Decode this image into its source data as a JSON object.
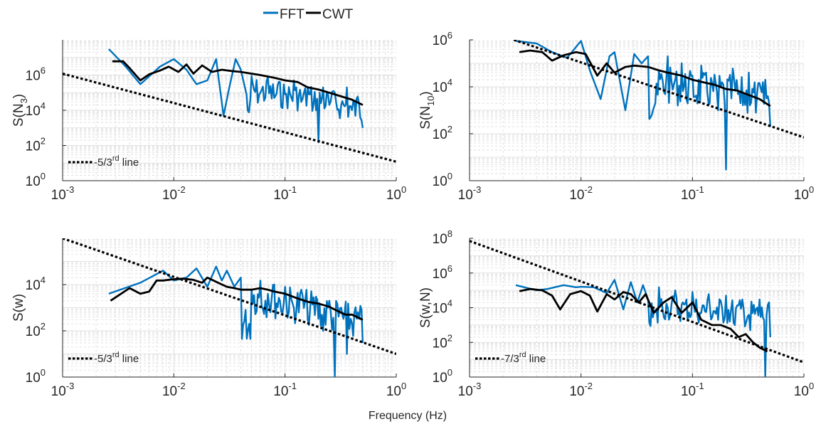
{
  "figure": {
    "legend": {
      "placement": "top-center",
      "entries": [
        {
          "label": "FFT",
          "color": "#0072BD"
        },
        {
          "label": "CWT",
          "color": "#000000"
        }
      ]
    },
    "xlabel": "Frequency (Hz)"
  },
  "chart_data": [
    {
      "type": "line",
      "ylabel_main": "S(N",
      "ylabel_sub": "3",
      "ylabel_end": ")",
      "xscale": "log",
      "yscale": "log",
      "xlim": [
        0.001,
        1
      ],
      "ylim": [
        1,
        100000000
      ],
      "xticks": [
        0.001,
        0.01,
        0.1,
        1
      ],
      "yticks": [
        1,
        100,
        10000,
        1000000
      ],
      "grid": true,
      "legend_placement": "bottom-left",
      "reference_line": {
        "label": "-5/3rd line",
        "slope": -1.6667,
        "x": [
          0.001,
          1
        ],
        "y": [
          1200000,
          12
        ]
      },
      "series": [
        {
          "name": "FFT",
          "color": "#0072BD",
          "noisy": true,
          "x": [
            0.0026,
            0.0037,
            0.005,
            0.0075,
            0.01,
            0.013,
            0.016,
            0.02,
            0.024,
            0.028,
            0.032,
            0.036,
            0.04,
            0.045,
            0.05,
            0.06,
            0.07,
            0.08,
            0.09,
            0.1,
            0.12,
            0.14,
            0.16,
            0.18,
            0.2,
            0.22,
            0.25,
            0.28,
            0.32,
            0.36,
            0.4,
            0.45,
            0.5
          ],
          "y": [
            30000000,
            3000000,
            300000,
            3000000,
            8000000,
            2000000,
            300000,
            500000,
            8000000,
            5000,
            300000,
            8000000,
            2000000,
            80000,
            900000,
            100000,
            800000,
            50000,
            400000,
            80000,
            500000,
            30000,
            200000,
            20000,
            150,
            200000,
            20000,
            100000,
            20000,
            200000,
            10000,
            60000,
            1000
          ],
          "envelope": [
            [
              0.05,
              1500000
            ],
            [
              0.1,
              900000
            ],
            [
              0.2,
              500000
            ],
            [
              0.3,
              250000
            ],
            [
              0.5,
              120000
            ]
          ]
        },
        {
          "name": "CWT",
          "color": "#000000",
          "x": [
            0.0028,
            0.0035,
            0.004,
            0.005,
            0.006,
            0.0075,
            0.009,
            0.011,
            0.013,
            0.015,
            0.018,
            0.022,
            0.027,
            0.033,
            0.04,
            0.05,
            0.06,
            0.08,
            0.1,
            0.13,
            0.16,
            0.2,
            0.25,
            0.3,
            0.4,
            0.5
          ],
          "y": [
            6000000,
            6000000,
            2500000,
            500000,
            1100000,
            1800000,
            3000000,
            1500000,
            4000000,
            1200000,
            3500000,
            1500000,
            2000000,
            1700000,
            1500000,
            1200000,
            1000000,
            700000,
            500000,
            400000,
            200000,
            150000,
            100000,
            70000,
            40000,
            20000
          ]
        }
      ]
    },
    {
      "type": "line",
      "ylabel_main": "S(N",
      "ylabel_sub": "10",
      "ylabel_end": ")",
      "xscale": "log",
      "yscale": "log",
      "xlim": [
        0.001,
        1
      ],
      "ylim": [
        1,
        1000000
      ],
      "xticks": [
        0.001,
        0.01,
        0.1,
        1
      ],
      "yticks": [
        1,
        100,
        10000,
        1000000
      ],
      "grid": true,
      "reference_line": {
        "label": "",
        "slope": -1.6667,
        "x": [
          0.0025,
          1
        ],
        "y": [
          1000000,
          70
        ]
      },
      "series": [
        {
          "name": "FFT",
          "color": "#0072BD",
          "noisy": true,
          "x": [
            0.0026,
            0.004,
            0.0055,
            0.0075,
            0.01,
            0.012,
            0.015,
            0.018,
            0.02,
            0.025,
            0.03,
            0.035,
            0.04,
            0.05,
            0.06,
            0.07,
            0.08,
            0.1,
            0.12,
            0.15,
            0.17,
            0.2,
            0.23,
            0.27,
            0.32,
            0.38,
            0.45,
            0.5
          ],
          "y": [
            900000,
            700000,
            300000,
            170000,
            900000,
            50000,
            3000,
            200000,
            300000,
            1000,
            250000,
            100000,
            200000,
            50000,
            200000,
            20000,
            100000,
            30000,
            80000,
            15000,
            1000,
            3,
            60000,
            2000,
            40000,
            5000,
            20000,
            200
          ],
          "envelope": [
            [
              0.05,
              160000
            ],
            [
              0.1,
              100000
            ],
            [
              0.2,
              70000
            ],
            [
              0.3,
              50000
            ],
            [
              0.5,
              30000
            ]
          ]
        },
        {
          "name": "CWT",
          "color": "#000000",
          "x": [
            0.0028,
            0.0035,
            0.0045,
            0.0055,
            0.007,
            0.009,
            0.011,
            0.014,
            0.017,
            0.02,
            0.025,
            0.03,
            0.04,
            0.05,
            0.06,
            0.08,
            0.1,
            0.13,
            0.16,
            0.2,
            0.25,
            0.3,
            0.4,
            0.5
          ],
          "y": [
            300000,
            350000,
            300000,
            130000,
            220000,
            300000,
            250000,
            30000,
            100000,
            40000,
            70000,
            80000,
            70000,
            50000,
            40000,
            30000,
            20000,
            15000,
            12000,
            8000,
            7000,
            5000,
            3000,
            1500
          ]
        }
      ]
    },
    {
      "type": "line",
      "ylabel_main": "S(w)",
      "ylabel_sub": "",
      "ylabel_end": "",
      "xscale": "log",
      "yscale": "log",
      "xlim": [
        0.001,
        1
      ],
      "ylim": [
        1,
        1000000
      ],
      "xticks": [
        0.001,
        0.01,
        0.1,
        1
      ],
      "yticks": [
        1,
        100,
        10000
      ],
      "grid": true,
      "legend_placement": "bottom-left",
      "reference_line": {
        "label": "-5/3rd line",
        "slope": -1.6667,
        "x": [
          0.001,
          1
        ],
        "y": [
          1000000,
          10
        ]
      },
      "series": [
        {
          "name": "FFT",
          "color": "#0072BD",
          "noisy": true,
          "x": [
            0.0026,
            0.005,
            0.008,
            0.01,
            0.013,
            0.016,
            0.02,
            0.024,
            0.027,
            0.03,
            0.035,
            0.04,
            0.05,
            0.06,
            0.07,
            0.08,
            0.09,
            0.1,
            0.12,
            0.14,
            0.16,
            0.19,
            0.22,
            0.25,
            0.28,
            0.32,
            0.36,
            0.42,
            0.5
          ],
          "y": [
            4000,
            12000,
            40000,
            15000,
            20000,
            50000,
            8000,
            60000,
            15000,
            40000,
            8000,
            20000,
            6000,
            15000,
            4000,
            10000,
            2000,
            8000,
            1000,
            6000,
            300,
            3000,
            100,
            2000,
            1,
            1000,
            10,
            600,
            30
          ],
          "envelope": [
            [
              0.05,
              40000
            ],
            [
              0.1,
              20000
            ],
            [
              0.2,
              10000
            ],
            [
              0.3,
              5000
            ],
            [
              0.5,
              2500
            ]
          ]
        },
        {
          "name": "CWT",
          "color": "#000000",
          "x": [
            0.0027,
            0.004,
            0.005,
            0.006,
            0.007,
            0.008,
            0.01,
            0.012,
            0.015,
            0.018,
            0.02,
            0.025,
            0.03,
            0.035,
            0.04,
            0.05,
            0.06,
            0.07,
            0.08,
            0.1,
            0.13,
            0.16,
            0.2,
            0.25,
            0.3,
            0.35,
            0.4,
            0.5
          ],
          "y": [
            2000,
            7000,
            4000,
            5000,
            15000,
            15000,
            17000,
            18000,
            16000,
            12000,
            20000,
            12000,
            8000,
            7000,
            6000,
            6000,
            7000,
            6000,
            5000,
            4000,
            2500,
            1800,
            1500,
            1100,
            700,
            500,
            500,
            300
          ]
        }
      ]
    },
    {
      "type": "line",
      "ylabel_main": "S(w,N)",
      "ylabel_sub": "",
      "ylabel_end": "",
      "xscale": "log",
      "yscale": "log",
      "xlim": [
        0.001,
        1
      ],
      "ylim": [
        1,
        100000000
      ],
      "xticks": [
        0.001,
        0.01,
        0.1,
        1
      ],
      "yticks": [
        1,
        100,
        10000,
        1000000,
        100000000
      ],
      "grid": true,
      "legend_placement": "bottom-left",
      "reference_line": {
        "label": "-7/3rd line",
        "slope": -2.3333,
        "x": [
          0.001,
          1
        ],
        "y": [
          70000000,
          7
        ]
      },
      "series": [
        {
          "name": "FFT",
          "color": "#0072BD",
          "noisy": true,
          "x": [
            0.0026,
            0.004,
            0.005,
            0.007,
            0.009,
            0.01,
            0.013,
            0.017,
            0.02,
            0.024,
            0.028,
            0.032,
            0.036,
            0.04,
            0.05,
            0.06,
            0.07,
            0.08,
            0.1,
            0.12,
            0.14,
            0.17,
            0.2,
            0.24,
            0.28,
            0.33,
            0.4,
            0.45,
            0.5
          ],
          "y": [
            200000,
            100000,
            120000,
            200000,
            150000,
            160000,
            150000,
            70000,
            400000,
            8000,
            300000,
            20000,
            200000,
            30000,
            150000,
            10000,
            100000,
            15000,
            80000,
            5000,
            60000,
            2000,
            50000,
            1000,
            30000,
            500,
            30000,
            1,
            200
          ],
          "envelope": [
            [
              0.05,
              150000
            ],
            [
              0.1,
              100000
            ],
            [
              0.2,
              80000
            ],
            [
              0.3,
              60000
            ],
            [
              0.5,
              40000
            ]
          ]
        },
        {
          "name": "CWT",
          "color": "#000000",
          "x": [
            0.0028,
            0.0035,
            0.0045,
            0.0055,
            0.0065,
            0.008,
            0.01,
            0.012,
            0.014,
            0.017,
            0.02,
            0.024,
            0.028,
            0.033,
            0.038,
            0.045,
            0.055,
            0.065,
            0.08,
            0.1,
            0.12,
            0.15,
            0.18,
            0.22,
            0.26,
            0.3,
            0.35,
            0.4,
            0.47
          ],
          "y": [
            90000,
            120000,
            100000,
            50000,
            8000,
            60000,
            90000,
            50000,
            6000,
            60000,
            30000,
            80000,
            60000,
            20000,
            60000,
            5000,
            20000,
            40000,
            5000,
            20000,
            2000,
            1000,
            1000,
            600,
            200,
            300,
            100,
            50,
            30
          ]
        }
      ]
    }
  ]
}
